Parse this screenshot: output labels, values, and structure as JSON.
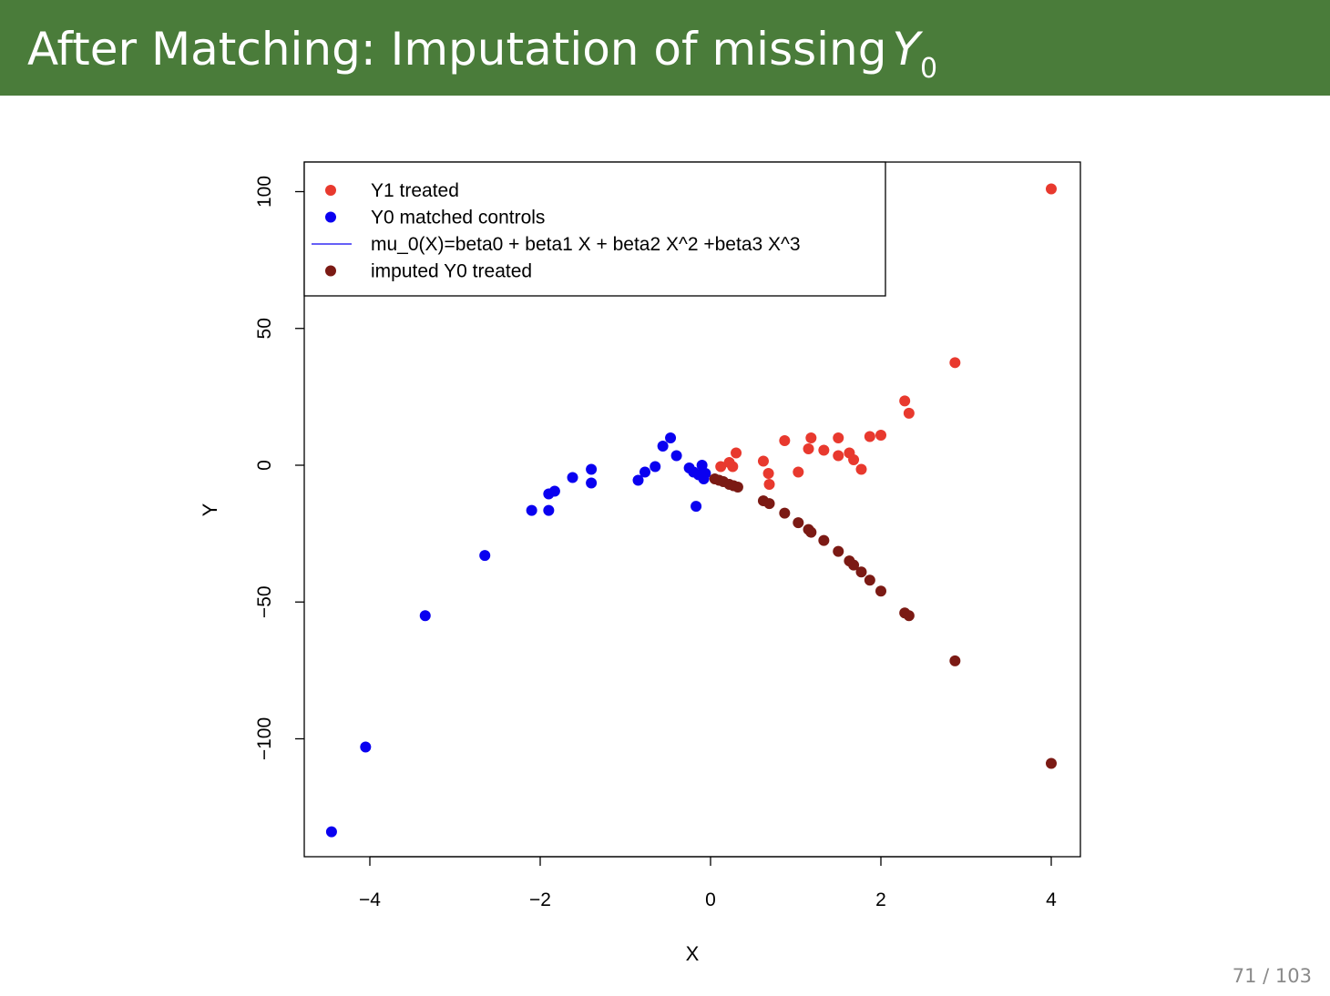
{
  "slide": {
    "title_text": "After Matching: Imputation of missing",
    "title_math_var": "Y",
    "title_math_sub": "0",
    "page_number": "71 / 103",
    "colors": {
      "header_bg": "#4a7c3a",
      "header_text": "#ffffff"
    }
  },
  "chart_data": {
    "type": "scatter",
    "title": "",
    "xlabel": "X",
    "ylabel": "Y",
    "xlim": [
      -4.6,
      4.4
    ],
    "ylim": [
      -143,
      111
    ],
    "xticks": [
      -4,
      -2,
      0,
      2,
      4
    ],
    "xtick_labels": [
      "−4",
      "−2",
      "0",
      "2",
      "4"
    ],
    "yticks": [
      100,
      50,
      0,
      -50,
      -100
    ],
    "ytick_labels": [
      "100",
      "50",
      "0",
      "−50",
      "−100"
    ],
    "grid": false,
    "legend_position": "top-left",
    "legend": [
      {
        "label": "Y1 treated",
        "kind": "point",
        "color": "#e8392e"
      },
      {
        "label": "Y0 matched controls",
        "kind": "point",
        "color": "#0a00f0"
      },
      {
        "label": "mu_0(X)=beta0 + beta1 X + beta2 X^2 +beta3 X^3",
        "kind": "line",
        "color": "#0a00f0"
      },
      {
        "label": "imputed Y0 treated",
        "kind": "point",
        "color": "#7b1a14"
      }
    ],
    "series": [
      {
        "name": "Y1 treated",
        "color": "#e8392e",
        "points": [
          [
            4.0,
            101
          ],
          [
            2.87,
            37.5
          ],
          [
            2.28,
            23.5
          ],
          [
            2.33,
            19
          ],
          [
            2.0,
            11
          ],
          [
            1.87,
            10.5
          ],
          [
            1.5,
            10
          ],
          [
            1.18,
            10
          ],
          [
            0.87,
            9
          ],
          [
            1.15,
            6
          ],
          [
            1.33,
            5.5
          ],
          [
            1.63,
            4.5
          ],
          [
            1.5,
            3.5
          ],
          [
            1.68,
            2
          ],
          [
            0.3,
            4.5
          ],
          [
            0.62,
            1.5
          ],
          [
            0.22,
            1
          ],
          [
            0.26,
            -0.5
          ],
          [
            0.12,
            -0.5
          ],
          [
            1.77,
            -1.5
          ],
          [
            1.03,
            -2.5
          ],
          [
            0.68,
            -3
          ],
          [
            0.69,
            -7
          ]
        ]
      },
      {
        "name": "Y0 matched controls",
        "color": "#0a00f0",
        "points": [
          [
            -4.45,
            -134
          ],
          [
            -4.05,
            -103
          ],
          [
            -3.35,
            -55
          ],
          [
            -2.65,
            -33
          ],
          [
            -2.1,
            -16.5
          ],
          [
            -1.9,
            -16.5
          ],
          [
            -1.9,
            -10.5
          ],
          [
            -1.83,
            -9.5
          ],
          [
            -1.62,
            -4.5
          ],
          [
            -1.4,
            -1.5
          ],
          [
            -1.4,
            -6.5
          ],
          [
            -0.85,
            -5.5
          ],
          [
            -0.77,
            -2.5
          ],
          [
            -0.65,
            -0.5
          ],
          [
            -0.56,
            7
          ],
          [
            -0.47,
            10
          ],
          [
            -0.4,
            3.5
          ],
          [
            -0.25,
            -1
          ],
          [
            -0.2,
            -2.5
          ],
          [
            -0.14,
            -3.5
          ],
          [
            -0.1,
            0
          ],
          [
            -0.06,
            -3
          ],
          [
            -0.08,
            -5
          ],
          [
            -0.17,
            -15
          ]
        ]
      },
      {
        "name": "imputed Y0 treated",
        "color": "#7b1a14",
        "points": [
          [
            0.05,
            -5
          ],
          [
            0.1,
            -5.5
          ],
          [
            0.15,
            -6
          ],
          [
            0.22,
            -7
          ],
          [
            0.27,
            -7.5
          ],
          [
            0.32,
            -8
          ],
          [
            0.62,
            -13
          ],
          [
            0.69,
            -14
          ],
          [
            0.87,
            -17.5
          ],
          [
            1.03,
            -21
          ],
          [
            1.15,
            -23.5
          ],
          [
            1.18,
            -24.5
          ],
          [
            1.33,
            -27.5
          ],
          [
            1.5,
            -31.5
          ],
          [
            1.63,
            -35
          ],
          [
            1.68,
            -36.5
          ],
          [
            1.77,
            -39
          ],
          [
            1.87,
            -42
          ],
          [
            2.0,
            -46
          ],
          [
            2.28,
            -54
          ],
          [
            2.33,
            -55
          ],
          [
            2.87,
            -71.5
          ],
          [
            4.0,
            -109
          ]
        ]
      }
    ]
  }
}
